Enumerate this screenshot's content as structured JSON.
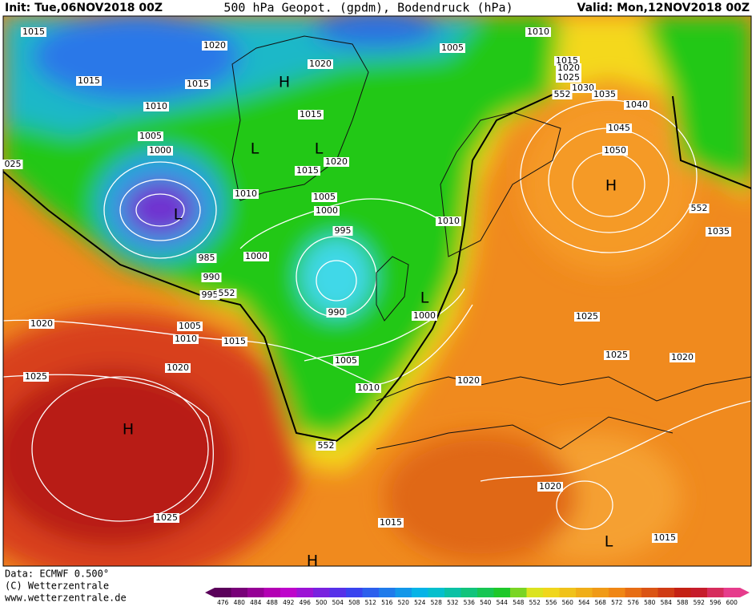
{
  "header": {
    "init": "Init: Tue,06NOV2018 00Z",
    "title": "500 hPa Geopot. (gpdm), Bodendruck (hPa)",
    "valid": "Valid: Mon,12NOV2018 00Z"
  },
  "map": {
    "isobars": [
      "1015",
      "1020",
      "1005",
      "1010",
      "1015",
      "1015",
      "1020",
      "1015",
      "1020",
      "1025",
      "1030",
      "552",
      "1035",
      "1040",
      "1010",
      "1015",
      "1045",
      "1005",
      "1000",
      "1050",
      "1020",
      "1015",
      "025",
      "1010",
      "1005",
      "1000",
      "552",
      "1010",
      "995",
      "1035",
      "1000",
      "985",
      "990",
      "995",
      "552",
      "990",
      "1000",
      "1025",
      "1020",
      "1005",
      "1010",
      "1015",
      "1025",
      "1020",
      "1005",
      "1020",
      "1020",
      "1025",
      "1010",
      "552",
      "1020",
      "1025",
      "1015",
      "1015"
    ],
    "centers": [
      "H",
      "L",
      "L",
      "L",
      "H",
      "L",
      "H",
      "L",
      "H"
    ]
  },
  "footer": {
    "data": "Data: ECMWF   0.500°",
    "copyright": "(C) Wetterzentrale",
    "url": "www.wetterzentrale.de"
  },
  "colorbar": {
    "ticks": [
      476,
      480,
      484,
      488,
      492,
      496,
      500,
      504,
      508,
      512,
      516,
      520,
      524,
      528,
      532,
      536,
      540,
      544,
      548,
      552,
      556,
      560,
      564,
      568,
      572,
      576,
      580,
      584,
      588,
      592,
      596,
      600
    ]
  }
}
